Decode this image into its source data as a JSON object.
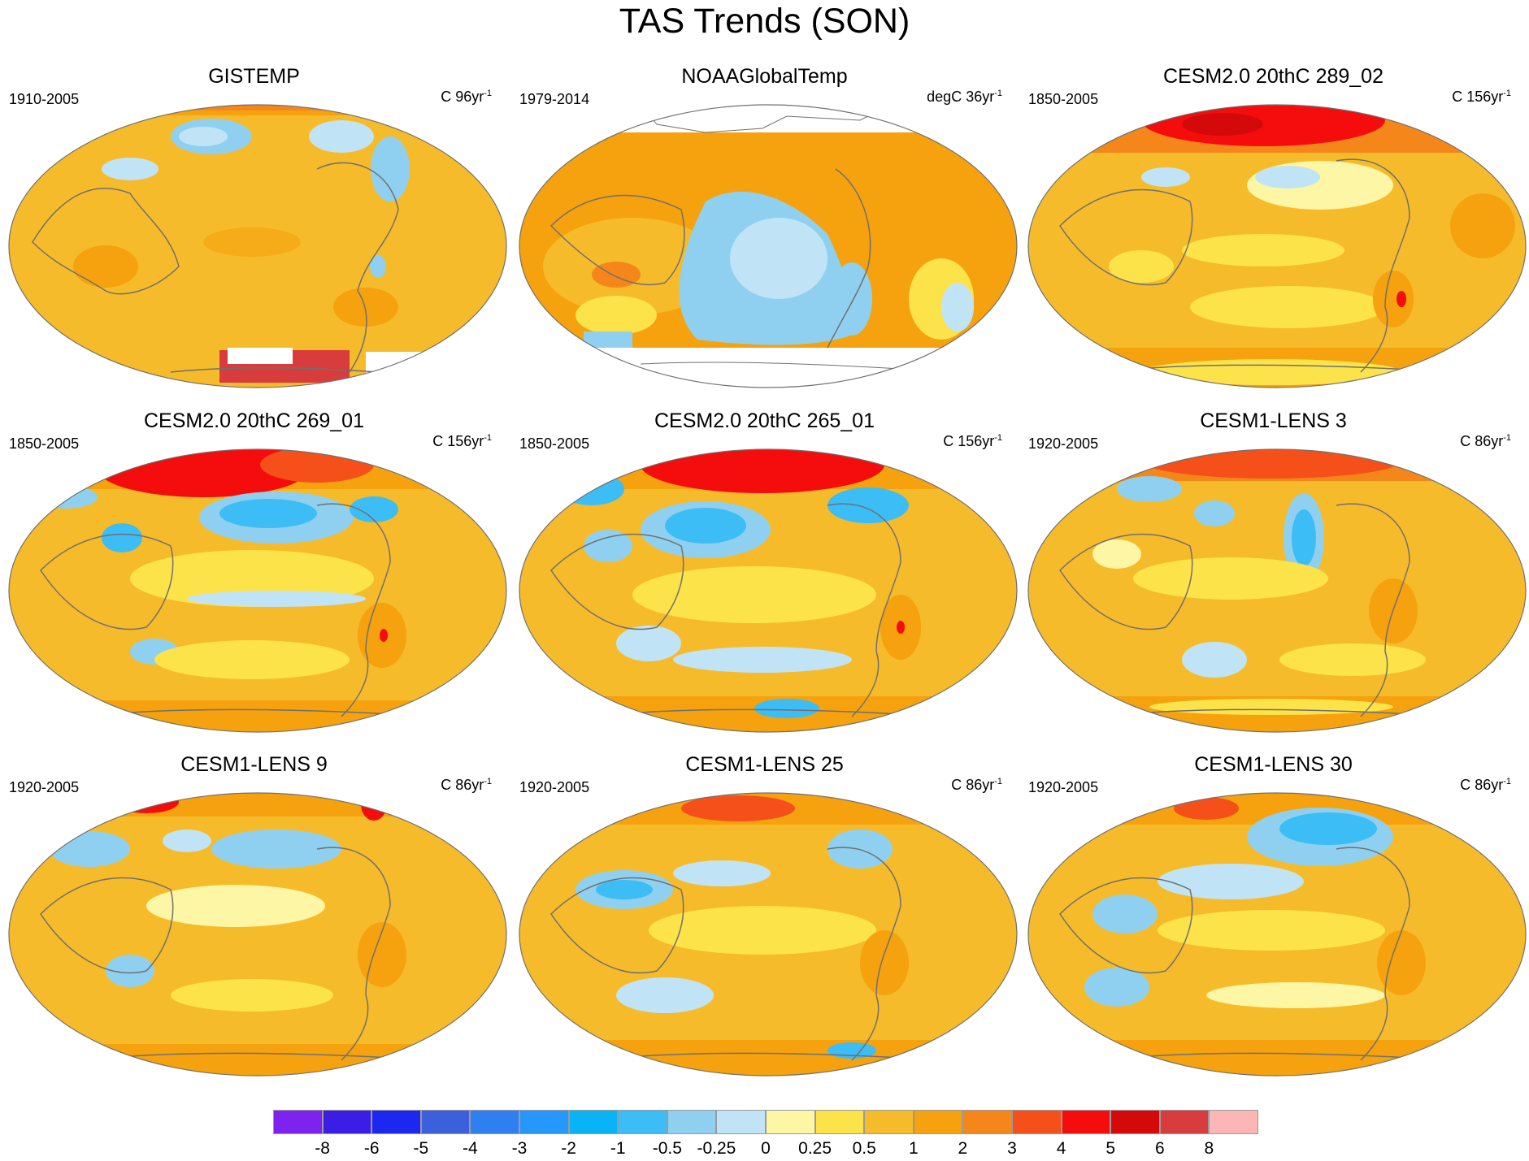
{
  "title": "TAS Trends (SON)",
  "palette": {
    "ocean_base": "#f6bb2a",
    "land_line": "#707070",
    "no_data": "#ffffff"
  },
  "panels": [
    {
      "title": "GISTEMP",
      "period": "1910-2005",
      "units_prefix": "C 96yr",
      "units_exp": "-1"
    },
    {
      "title": "NOAAGlobalTemp",
      "period": "1979-2014",
      "units_prefix": "degC 36yr",
      "units_exp": "-1"
    },
    {
      "title": "CESM2.0 20thC 289_02",
      "period": "1850-2005",
      "units_prefix": "C 156yr",
      "units_exp": "-1"
    },
    {
      "title": "CESM2.0 20thC 269_01",
      "period": "1850-2005",
      "units_prefix": "C 156yr",
      "units_exp": "-1"
    },
    {
      "title": "CESM2.0 20thC 265_01",
      "period": "1850-2005",
      "units_prefix": "C 156yr",
      "units_exp": "-1"
    },
    {
      "title": "CESM1-LENS 3",
      "period": "1920-2005",
      "units_prefix": "C 86yr",
      "units_exp": "-1"
    },
    {
      "title": "CESM1-LENS 9",
      "period": "1920-2005",
      "units_prefix": "C 86yr",
      "units_exp": "-1"
    },
    {
      "title": "CESM1-LENS 25",
      "period": "1920-2005",
      "units_prefix": "C 86yr",
      "units_exp": "-1"
    },
    {
      "title": "CESM1-LENS 30",
      "period": "1920-2005",
      "units_prefix": "C 86yr",
      "units_exp": "-1"
    }
  ],
  "colorbar": {
    "colors": [
      "#7d22ef",
      "#3b1ee6",
      "#1c27f0",
      "#3c5fdc",
      "#2e7ff2",
      "#2697fb",
      "#0ab3f5",
      "#3cbdf5",
      "#8fd0f0",
      "#c0e4f5",
      "#fdf6a5",
      "#fde34a",
      "#f6bb2a",
      "#f5a20e",
      "#f5871a",
      "#f5501a",
      "#f50d0d",
      "#d40a0a",
      "#d83c3c",
      "#fcb6b6"
    ],
    "labels": [
      "-8",
      "-6",
      "-5",
      "-4",
      "-3",
      "-2",
      "-1",
      "-0.5",
      "-0.25",
      "0",
      "0.25",
      "0.5",
      "1",
      "2",
      "3",
      "4",
      "5",
      "6",
      "8"
    ]
  }
}
